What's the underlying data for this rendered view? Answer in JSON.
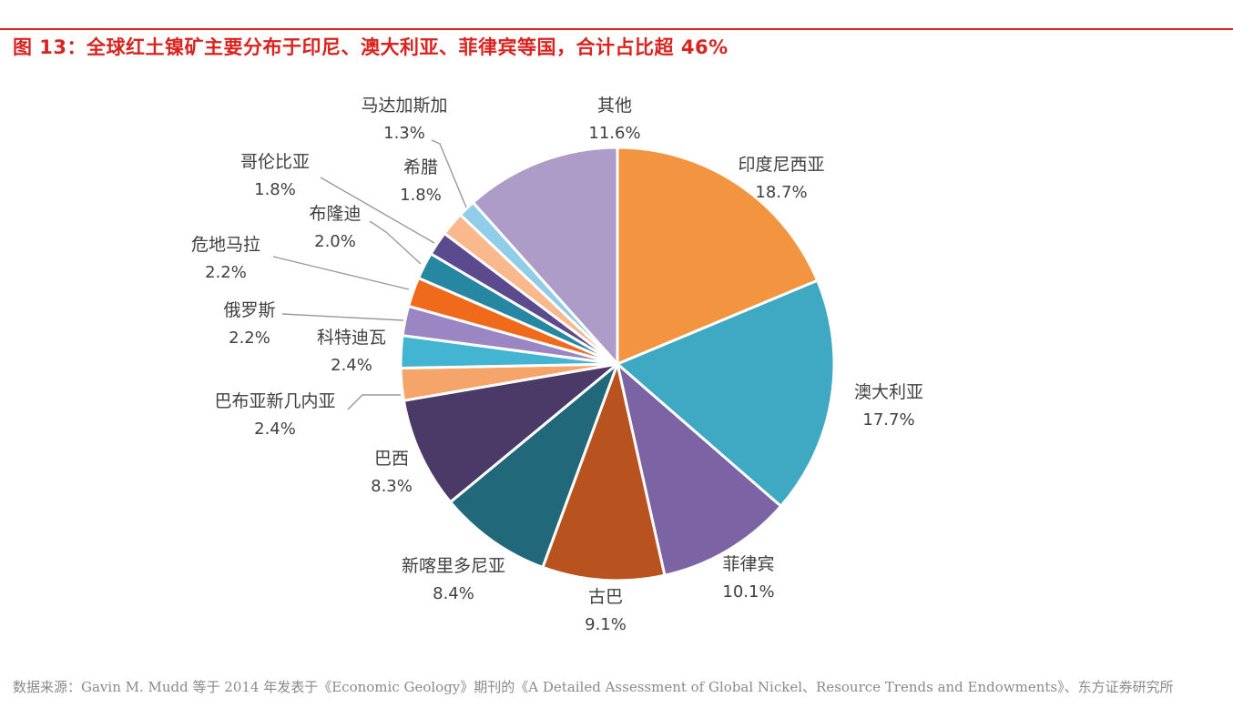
{
  "figure_title": "图 13：全球红土镍矿主要分布于印尼、澳大利亚、菲律宾等国，合计占比超 46%",
  "source_note": "数据来源：Gavin M. Mudd 等于 2014 年发表于《Economic Geology》期刊的《A Detailed Assessment of Global Nickel、Resource Trends and Endowments》、东方证券研究所",
  "chart_data": {
    "type": "pie",
    "start_angle_deg": 0,
    "direction": "clockwise",
    "legend": "none",
    "slices": [
      {
        "name": "印度尼西亚",
        "value": 18.7,
        "label": "18.7%",
        "color": "#f29440"
      },
      {
        "name": "澳大利亚",
        "value": 17.7,
        "label": "17.7%",
        "color": "#3fa9c4"
      },
      {
        "name": "菲律宾",
        "value": 10.1,
        "label": "10.1%",
        "color": "#7b63a4"
      },
      {
        "name": "古巴",
        "value": 9.1,
        "label": "9.1%",
        "color": "#b8521f"
      },
      {
        "name": "新喀里多尼亚",
        "value": 8.4,
        "label": "8.4%",
        "color": "#21687a"
      },
      {
        "name": "巴西",
        "value": 8.3,
        "label": "8.3%",
        "color": "#4b3a68"
      },
      {
        "name": "巴布亚新几内亚",
        "value": 2.4,
        "label": "2.4%",
        "color": "#f6a56a"
      },
      {
        "name": "科特迪瓦",
        "value": 2.4,
        "label": "2.4%",
        "color": "#43b4d2"
      },
      {
        "name": "俄罗斯",
        "value": 2.2,
        "label": "2.2%",
        "color": "#9b86c3"
      },
      {
        "name": "危地马拉",
        "value": 2.2,
        "label": "2.2%",
        "color": "#f06a1c"
      },
      {
        "name": "布隆迪",
        "value": 2.0,
        "label": "2.0%",
        "color": "#2687a3"
      },
      {
        "name": "哥伦比亚",
        "value": 1.8,
        "label": "1.8%",
        "color": "#5c4a8e"
      },
      {
        "name": "希腊",
        "value": 1.8,
        "label": "1.8%",
        "color": "#f9b98c"
      },
      {
        "name": "马达加斯加",
        "value": 1.3,
        "label": "1.3%",
        "color": "#8fcde8"
      },
      {
        "name": "其他",
        "value": 11.6,
        "label": "11.6%",
        "color": "#ad9bc8"
      }
    ]
  }
}
